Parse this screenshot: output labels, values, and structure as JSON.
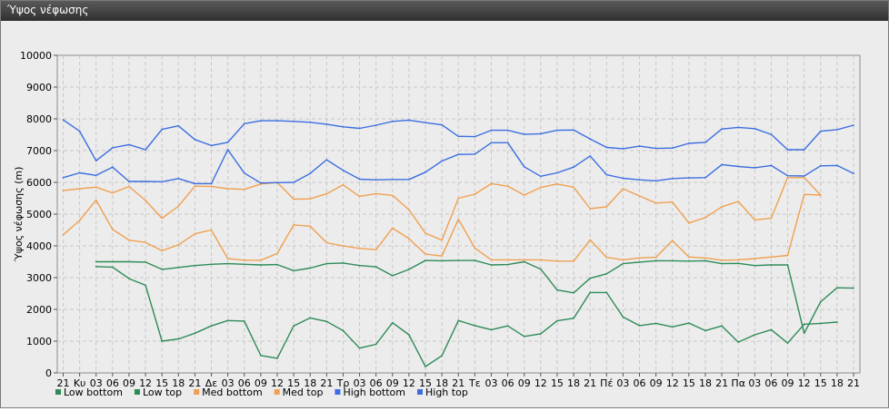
{
  "window": {
    "title": "Ύψος νέφωσης"
  },
  "colors": {
    "plot_bg": "#ececec",
    "grid": "#c8c8c8",
    "low": "#2e8b57",
    "med": "#f0a050",
    "high": "#3c6ee0"
  },
  "chart_data": {
    "type": "line",
    "title": "",
    "ylabel": "Ύψος νέφωσης (m)",
    "xlabel": "",
    "ylim": [
      0,
      10000
    ],
    "yticks": [
      "0",
      "1000",
      "2000",
      "3000",
      "4000",
      "5000",
      "6000",
      "7000",
      "8000",
      "9000",
      "10000"
    ],
    "grid": true,
    "legend_position": "bottom-left",
    "categories": [
      "21",
      "Κυ",
      "03",
      "06",
      "09",
      "12",
      "15",
      "18",
      "21",
      "Δε",
      "03",
      "06",
      "09",
      "12",
      "15",
      "18",
      "21",
      "Τρ",
      "03",
      "06",
      "09",
      "12",
      "15",
      "18",
      "21",
      "Τε",
      "03",
      "06",
      "09",
      "12",
      "15",
      "18",
      "21",
      "Πέ",
      "03",
      "06",
      "09",
      "12",
      "15",
      "18",
      "21",
      "Πα",
      "03",
      "06",
      "09",
      "12",
      "15",
      "18",
      "21"
    ],
    "series": [
      {
        "name": "Low bottom",
        "color_key": "low",
        "values": [
          null,
          null,
          3350,
          3330,
          2970,
          2760,
          1000,
          1070,
          1250,
          1480,
          1650,
          1630,
          550,
          460,
          1480,
          1730,
          1620,
          1330,
          780,
          900,
          1580,
          1200,
          200,
          540,
          1650,
          1490,
          1360,
          1480,
          1150,
          1230,
          1640,
          1720,
          2530,
          2530,
          1760,
          1490,
          1560,
          1450,
          1570,
          1330,
          1480,
          970,
          1200,
          1360,
          940,
          1530,
          1560,
          1600,
          null
        ]
      },
      {
        "name": "Low top",
        "color_key": "low",
        "values": [
          null,
          null,
          3500,
          3500,
          3500,
          3490,
          3260,
          3320,
          3380,
          3420,
          3440,
          3420,
          3400,
          3410,
          3220,
          3300,
          3440,
          3460,
          3380,
          3340,
          3060,
          3260,
          3540,
          3530,
          3540,
          3540,
          3400,
          3410,
          3500,
          3270,
          2610,
          2520,
          2980,
          3120,
          3440,
          3490,
          3530,
          3530,
          3520,
          3530,
          3440,
          3450,
          3380,
          3400,
          3400,
          1250,
          2240,
          2680,
          2670
        ]
      },
      {
        "name": "Med bottom",
        "color_key": "med",
        "values": [
          4350,
          4800,
          5440,
          4520,
          4180,
          4110,
          3850,
          4030,
          4380,
          4500,
          3600,
          3550,
          3550,
          3760,
          4660,
          4620,
          4100,
          4000,
          3920,
          3880,
          4560,
          4230,
          3740,
          3680,
          4840,
          3930,
          3560,
          3560,
          3560,
          3560,
          3520,
          3520,
          4190,
          3640,
          3560,
          3620,
          3640,
          4170,
          3650,
          3620,
          3550,
          3560,
          3600,
          3650,
          3700,
          5620,
          5600,
          null,
          null
        ]
      },
      {
        "name": "Med top",
        "color_key": "med",
        "values": [
          5740,
          5800,
          5850,
          5670,
          5870,
          5430,
          4870,
          5250,
          5880,
          5870,
          5800,
          5780,
          5950,
          6000,
          5470,
          5480,
          5640,
          5920,
          5560,
          5640,
          5590,
          5140,
          4400,
          4180,
          5500,
          5630,
          5960,
          5880,
          5600,
          5840,
          5950,
          5850,
          5170,
          5230,
          5800,
          5570,
          5350,
          5380,
          4720,
          4890,
          5230,
          5400,
          4820,
          4870,
          6150,
          6150,
          5600,
          null,
          null
        ]
      },
      {
        "name": "High bottom",
        "color_key": "high",
        "values": [
          6150,
          6300,
          6220,
          6480,
          6030,
          6030,
          6020,
          6120,
          5960,
          5960,
          7030,
          6290,
          5980,
          5990,
          6000,
          6280,
          6710,
          6380,
          6100,
          6080,
          6090,
          6090,
          6320,
          6670,
          6880,
          6890,
          7250,
          7250,
          6490,
          6190,
          6300,
          6480,
          6830,
          6240,
          6130,
          6080,
          6050,
          6120,
          6140,
          6150,
          6560,
          6500,
          6460,
          6530,
          6210,
          6200,
          6520,
          6530,
          6280
        ]
      },
      {
        "name": "High top",
        "color_key": "high",
        "values": [
          7970,
          7610,
          6680,
          7090,
          7190,
          7030,
          7670,
          7780,
          7350,
          7160,
          7260,
          7850,
          7940,
          7940,
          7920,
          7890,
          7830,
          7750,
          7700,
          7800,
          7920,
          7960,
          7880,
          7810,
          7450,
          7440,
          7640,
          7640,
          7510,
          7530,
          7640,
          7650,
          7370,
          7100,
          7060,
          7140,
          7070,
          7080,
          7230,
          7260,
          7680,
          7730,
          7690,
          7510,
          7030,
          7030,
          7610,
          7660,
          7800
        ]
      }
    ]
  }
}
